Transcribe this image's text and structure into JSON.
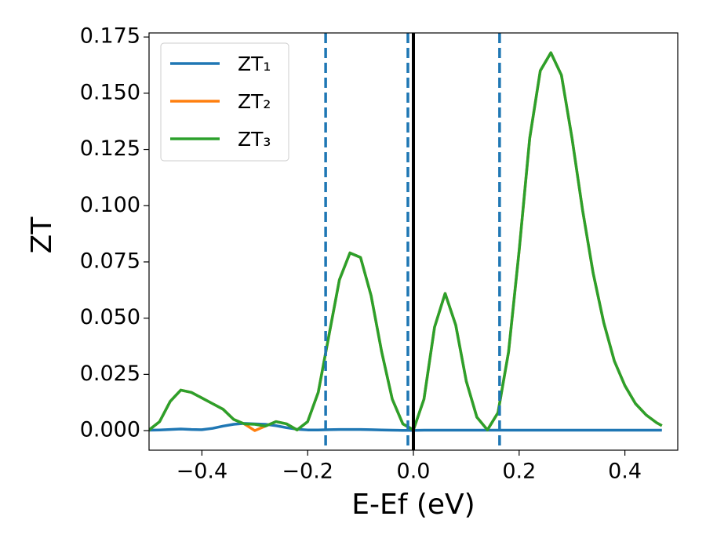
{
  "chart_data": {
    "type": "line",
    "xlabel": "E-Ef (eV)",
    "ylabel": "ZT",
    "x": [
      -0.5,
      -0.48,
      -0.46,
      -0.44,
      -0.42,
      -0.4,
      -0.38,
      -0.36,
      -0.34,
      -0.32,
      -0.3,
      -0.28,
      -0.26,
      -0.24,
      -0.22,
      -0.2,
      -0.18,
      -0.16,
      -0.14,
      -0.12,
      -0.1,
      -0.08,
      -0.06,
      -0.04,
      -0.02,
      0,
      0.02,
      0.04,
      0.06,
      0.08,
      0.1,
      0.12,
      0.14,
      0.16,
      0.18,
      0.2,
      0.22,
      0.24,
      0.26,
      0.28,
      0.3,
      0.32,
      0.34,
      0.36,
      0.38,
      0.4,
      0.42,
      0.44,
      0.46,
      0.47
    ],
    "series": [
      {
        "name": "ZT₁",
        "color": "#1f77b4",
        "values": [
          0.0002,
          0.0003,
          0.0005,
          0.0007,
          0.0005,
          0.0004,
          0.001,
          0.002,
          0.0028,
          0.0032,
          0.003,
          0.0028,
          0.0022,
          0.0013,
          0.0006,
          0.0003,
          0.0003,
          0.0004,
          0.0005,
          0.0005,
          0.0005,
          0.0004,
          0.0003,
          0.0002,
          0.0001,
          0.0001,
          0.0002,
          0.0002,
          0.0002,
          0.0002,
          0.0002,
          0.0002,
          0.0002,
          0.0002,
          0.0002,
          0.0002,
          0.0002,
          0.0002,
          0.0002,
          0.0002,
          0.0002,
          0.0002,
          0.0002,
          0.0002,
          0.0002,
          0.0002,
          0.0002,
          0.0002,
          0.0002,
          0.0002
        ]
      },
      {
        "name": "ZT₂",
        "color": "#ff7f0e",
        "values": [
          0.0003,
          0.004,
          0.013,
          0.018,
          0.017,
          0.0145,
          0.012,
          0.0095,
          0.005,
          0.003,
          0,
          0.002,
          0.004,
          0.003,
          0.0003,
          0.004,
          0.017,
          0.042,
          0.067,
          0.079,
          0.077,
          0.06,
          0.035,
          0.014,
          0.003,
          0.0003,
          0.014,
          0.046,
          0.061,
          0.047,
          0.022,
          0.006,
          0.0003,
          0.008,
          0.035,
          0.08,
          0.13,
          0.16,
          0.168,
          0.158,
          0.13,
          0.098,
          0.07,
          0.048,
          0.031,
          0.02,
          0.012,
          0.007,
          0.0035,
          0.0022
        ]
      },
      {
        "name": "ZT₃",
        "color": "#2ca02c",
        "values": [
          0.0003,
          0.004,
          0.013,
          0.018,
          0.017,
          0.0145,
          0.012,
          0.0095,
          0.005,
          0.003,
          0.0028,
          0.002,
          0.004,
          0.003,
          0.0003,
          0.004,
          0.017,
          0.042,
          0.067,
          0.079,
          0.077,
          0.06,
          0.035,
          0.014,
          0.003,
          0.0003,
          0.014,
          0.046,
          0.061,
          0.047,
          0.022,
          0.006,
          0.0003,
          0.008,
          0.035,
          0.08,
          0.13,
          0.16,
          0.168,
          0.158,
          0.13,
          0.098,
          0.07,
          0.048,
          0.031,
          0.02,
          0.012,
          0.007,
          0.0035,
          0.0022
        ]
      }
    ],
    "vlines": [
      {
        "x": -0.166,
        "color": "#1f77b4",
        "style": "dashed"
      },
      {
        "x": -0.0104,
        "color": "#1f77b4",
        "style": "dashed"
      },
      {
        "x": 0,
        "color": "#000000",
        "style": "solid"
      },
      {
        "x": 0.163,
        "color": "#1f77b4",
        "style": "dashed"
      }
    ],
    "xlim": [
      -0.5,
      0.5
    ],
    "ylim": [
      -0.0087,
      0.1768
    ],
    "xticks": [
      {
        "value": -0.4,
        "label": "−0.4"
      },
      {
        "value": -0.2,
        "label": "−0.2"
      },
      {
        "value": 0,
        "label": "0.0"
      },
      {
        "value": 0.2,
        "label": "0.2"
      },
      {
        "value": 0.4,
        "label": "0.4"
      }
    ],
    "yticks": [
      {
        "value": 0,
        "label": "0.000"
      },
      {
        "value": 0.025,
        "label": "0.025"
      },
      {
        "value": 0.05,
        "label": "0.050"
      },
      {
        "value": 0.075,
        "label": "0.075"
      },
      {
        "value": 0.1,
        "label": "0.100"
      },
      {
        "value": 0.125,
        "label": "0.125"
      },
      {
        "value": 0.15,
        "label": "0.150"
      },
      {
        "value": 0.175,
        "label": "0.175"
      }
    ],
    "grid": false,
    "legend": "upper left"
  }
}
